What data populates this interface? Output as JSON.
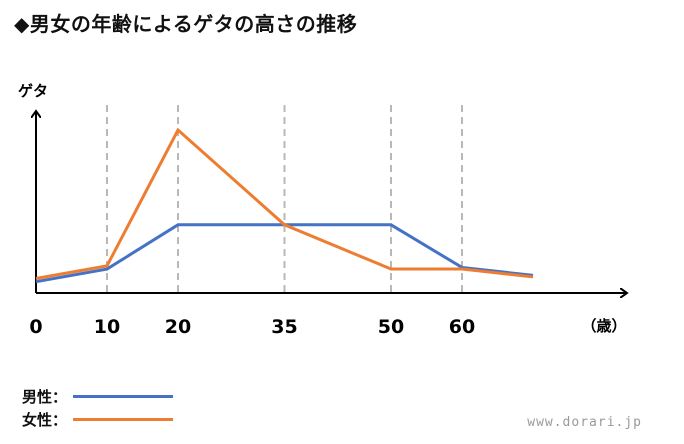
{
  "title": "◆男女の年齢によるゲタの高さの推移",
  "chart_data": {
    "type": "line",
    "ylabel": "ゲタ",
    "xunit": "（歳）",
    "x": [
      0,
      10,
      20,
      35,
      50,
      60,
      70
    ],
    "x_ticks": [
      0,
      10,
      20,
      35,
      50,
      60
    ],
    "x_ticks_label": [
      "0",
      "10",
      "20",
      "35",
      "50",
      "60"
    ],
    "dashed_gridlines_at": [
      10,
      20,
      35,
      50,
      60
    ],
    "xlim": [
      0,
      80
    ],
    "ylim": [
      0,
      10
    ],
    "y_ticks_shown": false,
    "series": [
      {
        "name": "男性：",
        "color": "#4472C4",
        "values": [
          0.4,
          1.2,
          4.0,
          4.0,
          4.0,
          1.3,
          0.8
        ]
      },
      {
        "name": "女性：",
        "color": "#ED7D31",
        "values": [
          0.6,
          1.4,
          10.0,
          4.0,
          1.2,
          1.2,
          0.7
        ]
      }
    ],
    "legend": "bottom-left"
  },
  "watermark": "www.dorari.jp"
}
